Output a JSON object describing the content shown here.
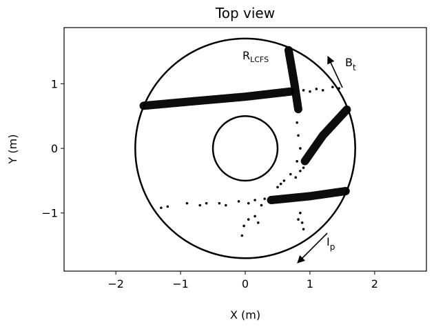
{
  "chart_data": {
    "type": "scatter",
    "title": "Top view",
    "x_label": "X (m)",
    "y_label": "Y (m)",
    "xlim": [
      -2.8,
      2.8
    ],
    "ylim": [
      -1.9,
      1.87
    ],
    "xticks": [
      {
        "value": -2,
        "label": "−2"
      },
      {
        "value": -1,
        "label": "−1"
      },
      0,
      1,
      2
    ],
    "yticks": [
      {
        "value": -1,
        "label": "−1"
      },
      0,
      1
    ],
    "color": "#000000",
    "circles": [
      {
        "r": 1.7
      },
      {
        "r": 0.5
      }
    ],
    "bands": [
      {
        "x": [
          -1.57,
          -0.8,
          0,
          0.7
        ],
        "y": [
          0.66,
          0.73,
          0.8,
          0.88
        ]
      },
      {
        "x": [
          0.67,
          0.76,
          0.82
        ],
        "y": [
          1.52,
          1.0,
          0.6
        ]
      },
      {
        "x": [
          1.57,
          1.2,
          0.92
        ],
        "y": [
          0.6,
          0.2,
          -0.2
        ]
      },
      {
        "x": [
          0.4,
          1.0,
          1.56
        ],
        "y": [
          -0.8,
          -0.74,
          -0.66
        ]
      }
    ],
    "points": {
      "x": [
        0.9,
        1.0,
        1.1,
        1.2,
        1.35,
        1.45,
        0.8,
        0.82,
        0.85,
        0.8,
        0.85,
        0.78,
        0.9,
        -1.3,
        -1.2,
        -0.9,
        -0.7,
        -0.6,
        -0.4,
        -0.3,
        -0.1,
        0.05,
        0.15,
        0.25,
        0.3,
        -0.05,
        -0.02,
        0.05,
        0.15,
        0.2,
        0.85,
        0.88,
        0.9,
        0.82,
        0.5,
        0.6,
        0.7,
        0.55
      ],
      "y": [
        0.9,
        0.88,
        0.92,
        0.9,
        0.95,
        0.93,
        0.4,
        0.2,
        0.0,
        -0.2,
        -0.35,
        -0.45,
        -0.3,
        -0.92,
        -0.9,
        -0.85,
        -0.88,
        -0.85,
        -0.85,
        -0.88,
        -0.82,
        -0.85,
        -0.8,
        -0.88,
        -0.78,
        -1.35,
        -1.2,
        -1.1,
        -1.05,
        -1.15,
        -1.0,
        -1.15,
        -1.25,
        -1.1,
        -0.6,
        -0.5,
        -0.4,
        -0.55
      ]
    },
    "annotations": [
      {
        "text": "R",
        "sub": "LCFS"
      },
      {
        "text": "B",
        "sub": "t"
      },
      {
        "text": "I",
        "sub": "p"
      }
    ]
  }
}
